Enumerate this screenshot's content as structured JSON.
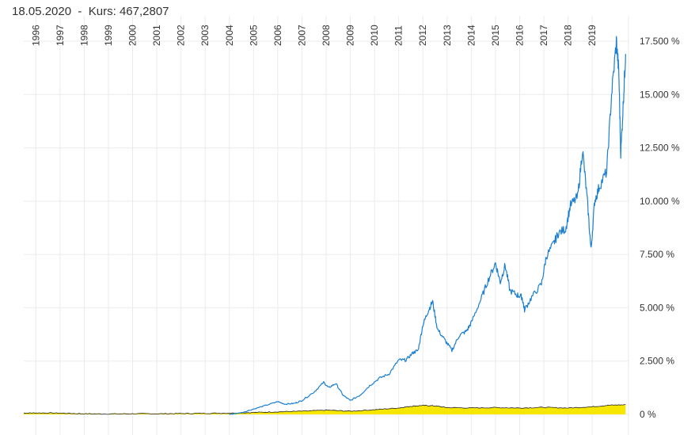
{
  "header": {
    "date": "18.05.2020",
    "separator": "-",
    "price_label": "Kurs:",
    "price_value": "467,2807"
  },
  "colors": {
    "price_line": "#1a7fd1",
    "volume_fill": "#f7e600",
    "volume_edge": "#222222",
    "grid": "#ebebeb",
    "text": "#333333"
  },
  "chart_data": {
    "type": "line",
    "title": "",
    "xlabel": "",
    "ylabel": "",
    "ylim": [
      0,
      17500
    ],
    "y_ticks": [
      0,
      2500,
      5000,
      7500,
      10000,
      12500,
      15000,
      17500
    ],
    "y_tick_labels": [
      "0 %",
      "2.500 %",
      "5.000 %",
      "7.500 %",
      "10.000 %",
      "12.500 %",
      "15.000 %",
      "17.500 %"
    ],
    "x_range": [
      1995.5,
      2020.5
    ],
    "x_tick_labels": [
      "1996",
      "1997",
      "1998",
      "1999",
      "2000",
      "2001",
      "2002",
      "2003",
      "2004",
      "2005",
      "2006",
      "2007",
      "2008",
      "2009",
      "2010",
      "2011",
      "2012",
      "2013",
      "2014",
      "2015",
      "2016",
      "2017",
      "2018",
      "2019"
    ],
    "grid": true,
    "legend": "none",
    "series": [
      {
        "kind": "line",
        "points": [
          [
            2004.0,
            0
          ],
          [
            2004.5,
            80
          ],
          [
            2005.0,
            250
          ],
          [
            2005.5,
            420
          ],
          [
            2006.0,
            600
          ],
          [
            2006.3,
            480
          ],
          [
            2006.7,
            520
          ],
          [
            2007.0,
            650
          ],
          [
            2007.5,
            1050
          ],
          [
            2007.9,
            1500
          ],
          [
            2008.1,
            1250
          ],
          [
            2008.4,
            1450
          ],
          [
            2008.7,
            900
          ],
          [
            2009.0,
            650
          ],
          [
            2009.4,
            900
          ],
          [
            2009.8,
            1350
          ],
          [
            2010.2,
            1700
          ],
          [
            2010.6,
            1900
          ],
          [
            2011.0,
            2550
          ],
          [
            2011.3,
            2550
          ],
          [
            2011.6,
            2900
          ],
          [
            2011.8,
            3000
          ],
          [
            2012.0,
            4200
          ],
          [
            2012.2,
            4800
          ],
          [
            2012.4,
            5300
          ],
          [
            2012.6,
            4000
          ],
          [
            2012.9,
            3500
          ],
          [
            2013.2,
            3000
          ],
          [
            2013.5,
            3700
          ],
          [
            2013.8,
            3900
          ],
          [
            2014.0,
            4300
          ],
          [
            2014.4,
            5400
          ],
          [
            2014.7,
            6300
          ],
          [
            2015.0,
            7100
          ],
          [
            2015.2,
            6200
          ],
          [
            2015.4,
            7000
          ],
          [
            2015.6,
            5800
          ],
          [
            2015.9,
            5600
          ],
          [
            2016.1,
            5500
          ],
          [
            2016.2,
            4900
          ],
          [
            2016.5,
            5500
          ],
          [
            2016.9,
            6100
          ],
          [
            2017.1,
            7400
          ],
          [
            2017.4,
            8000
          ],
          [
            2017.6,
            8500
          ],
          [
            2017.9,
            8700
          ],
          [
            2018.1,
            9800
          ],
          [
            2018.4,
            10200
          ],
          [
            2018.6,
            12400
          ],
          [
            2018.8,
            10000
          ],
          [
            2018.95,
            7700
          ],
          [
            2019.1,
            10000
          ],
          [
            2019.3,
            10700
          ],
          [
            2019.6,
            11400
          ],
          [
            2019.8,
            15000
          ],
          [
            2020.0,
            17500
          ],
          [
            2020.1,
            16000
          ],
          [
            2020.18,
            12200
          ],
          [
            2020.3,
            15000
          ],
          [
            2020.38,
            16900
          ]
        ]
      },
      {
        "kind": "area",
        "points": [
          [
            1995.5,
            60
          ],
          [
            1996.0,
            70
          ],
          [
            1997.0,
            60
          ],
          [
            1998.0,
            30
          ],
          [
            1999.0,
            20
          ],
          [
            2000.0,
            30
          ],
          [
            2001.0,
            30
          ],
          [
            2002.0,
            40
          ],
          [
            2003.0,
            50
          ],
          [
            2004.0,
            60
          ],
          [
            2005.0,
            90
          ],
          [
            2006.0,
            120
          ],
          [
            2007.0,
            150
          ],
          [
            2008.0,
            200
          ],
          [
            2009.0,
            150
          ],
          [
            2010.0,
            220
          ],
          [
            2011.0,
            300
          ],
          [
            2011.5,
            380
          ],
          [
            2012.0,
            420
          ],
          [
            2012.5,
            400
          ],
          [
            2013.0,
            320
          ],
          [
            2014.0,
            300
          ],
          [
            2015.0,
            320
          ],
          [
            2016.0,
            300
          ],
          [
            2017.0,
            330
          ],
          [
            2018.0,
            300
          ],
          [
            2019.0,
            360
          ],
          [
            2019.7,
            430
          ],
          [
            2020.38,
            450
          ]
        ]
      }
    ]
  }
}
